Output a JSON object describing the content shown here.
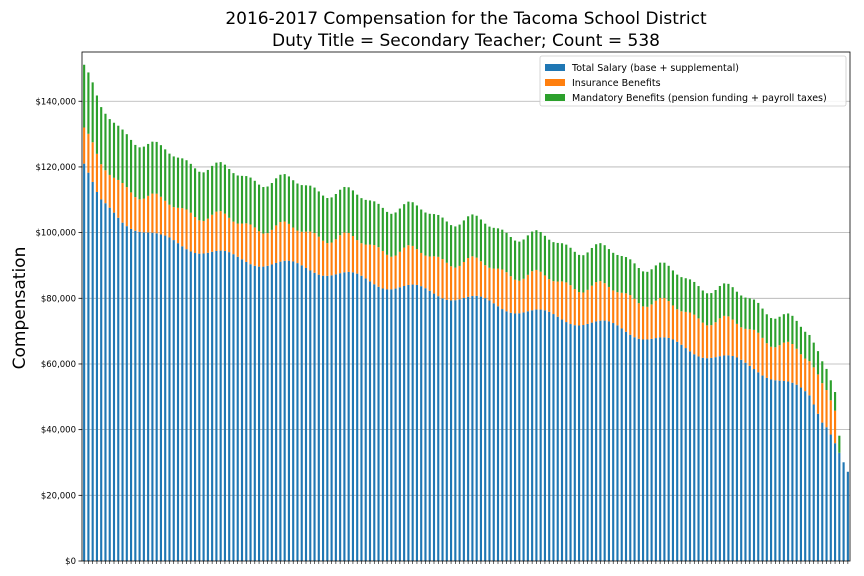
{
  "chart_data": {
    "type": "bar",
    "stacked": true,
    "title_line1": "2016-2017 Compensation for the Tacoma School District",
    "title_line2": "Duty Title = Secondary Teacher; Count = 538",
    "xlabel": "",
    "ylabel": "Compensation",
    "ylim": [
      0,
      155000
    ],
    "yticks": [
      0,
      20000,
      40000,
      60000,
      80000,
      100000,
      120000,
      140000
    ],
    "ytick_labels": [
      "$0",
      "$20,000",
      "$40,000",
      "$60,000",
      "$80,000",
      "$100,000",
      "$120,000",
      "$140,000"
    ],
    "grid": "horizontal",
    "legend_position": "top-right",
    "bar_count_shown": 180,
    "series": [
      {
        "name": "Total Salary (base + supplemental)",
        "color": "#1f77b4"
      },
      {
        "name": "Insurance Benefits",
        "color": "#ff7f0e"
      },
      {
        "name": "Mandatory Benefits (pension funding + payroll taxes)",
        "color": "#2ca02c"
      }
    ],
    "salary_profile": [
      [
        0,
        121000
      ],
      [
        0.02,
        109000
      ],
      [
        0.05,
        104000
      ],
      [
        0.1,
        98000
      ],
      [
        0.2,
        92000
      ],
      [
        0.3,
        89000
      ],
      [
        0.4,
        84000
      ],
      [
        0.5,
        80000
      ],
      [
        0.6,
        75000
      ],
      [
        0.7,
        71000
      ],
      [
        0.8,
        64000
      ],
      [
        0.88,
        59000
      ],
      [
        0.95,
        50000
      ],
      [
        0.98,
        38000
      ],
      [
        1.0,
        27000
      ]
    ],
    "insurance_typical": 11000,
    "mandatory_fraction": 0.158
  }
}
